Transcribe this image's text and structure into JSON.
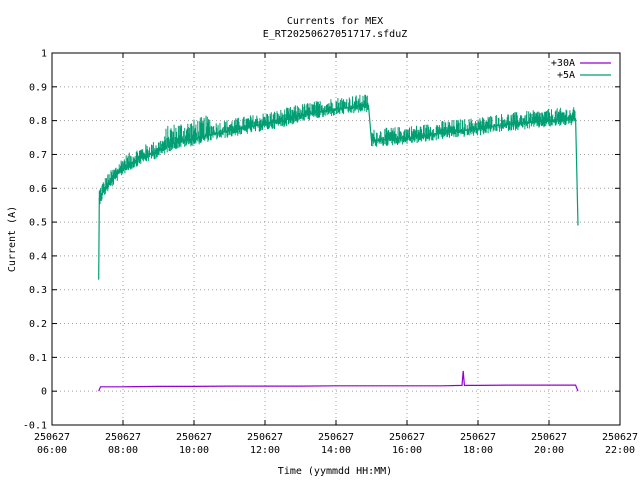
{
  "chart_data": {
    "type": "line",
    "title": "Currents for MEX",
    "subtitle": "E_RT20250627051717.sfduZ",
    "xlabel": "Time (yymmdd HH:MM)",
    "ylabel": "Current (A)",
    "xlim": [
      "2025-06-27T06:00",
      "2025-06-27T22:00"
    ],
    "ylim": [
      -0.1,
      1.0
    ],
    "grid": true,
    "legend_position": "top-right",
    "x_ticks": [
      {
        "date": "250627",
        "time": "06:00",
        "hour": 6
      },
      {
        "date": "250627",
        "time": "08:00",
        "hour": 8
      },
      {
        "date": "250627",
        "time": "10:00",
        "hour": 10
      },
      {
        "date": "250627",
        "time": "12:00",
        "hour": 12
      },
      {
        "date": "250627",
        "time": "14:00",
        "hour": 14
      },
      {
        "date": "250627",
        "time": "16:00",
        "hour": 16
      },
      {
        "date": "250627",
        "time": "18:00",
        "hour": 18
      },
      {
        "date": "250627",
        "time": "20:00",
        "hour": 20
      },
      {
        "date": "250627",
        "time": "22:00",
        "hour": 22
      }
    ],
    "y_ticks": [
      "-0.1",
      "0",
      "0.1",
      "0.2",
      "0.3",
      "0.4",
      "0.5",
      "0.6",
      "0.7",
      "0.8",
      "0.9",
      "1"
    ],
    "series": [
      {
        "name": "+30A",
        "color": "#9400d3",
        "points": [
          [
            "07:19",
            0.0
          ],
          [
            "07:22",
            0.013
          ],
          [
            "08:00",
            0.013
          ],
          [
            "09:00",
            0.014
          ],
          [
            "10:00",
            0.014
          ],
          [
            "11:00",
            0.015
          ],
          [
            "12:00",
            0.015
          ],
          [
            "13:00",
            0.015
          ],
          [
            "14:00",
            0.016
          ],
          [
            "15:00",
            0.016
          ],
          [
            "16:00",
            0.016
          ],
          [
            "17:00",
            0.016
          ],
          [
            "17:33",
            0.017
          ],
          [
            "17:35",
            0.06
          ],
          [
            "17:37",
            0.017
          ],
          [
            "18:00",
            0.017
          ],
          [
            "19:00",
            0.018
          ],
          [
            "20:00",
            0.018
          ],
          [
            "20:45",
            0.018
          ],
          [
            "20:49",
            0.0
          ]
        ]
      },
      {
        "name": "+5A",
        "color": "#009e73",
        "points": [
          [
            "07:19",
            0.33
          ],
          [
            "07:20",
            0.57
          ],
          [
            "07:30",
            0.6
          ],
          [
            "07:45",
            0.63
          ],
          [
            "08:00",
            0.66
          ],
          [
            "08:30",
            0.69
          ],
          [
            "09:00",
            0.71
          ],
          [
            "09:20",
            0.73
          ],
          [
            "09:40",
            0.74
          ],
          [
            "10:00",
            0.745
          ],
          [
            "10:30",
            0.76
          ],
          [
            "11:00",
            0.77
          ],
          [
            "11:30",
            0.78
          ],
          [
            "12:00",
            0.79
          ],
          [
            "12:30",
            0.8
          ],
          [
            "13:00",
            0.815
          ],
          [
            "13:30",
            0.825
          ],
          [
            "14:00",
            0.835
          ],
          [
            "14:30",
            0.84
          ],
          [
            "14:55",
            0.845
          ],
          [
            "15:00",
            0.74
          ],
          [
            "15:30",
            0.745
          ],
          [
            "16:00",
            0.75
          ],
          [
            "16:30",
            0.755
          ],
          [
            "17:00",
            0.765
          ],
          [
            "17:30",
            0.77
          ],
          [
            "18:00",
            0.775
          ],
          [
            "18:30",
            0.785
          ],
          [
            "19:00",
            0.79
          ],
          [
            "19:30",
            0.795
          ],
          [
            "20:00",
            0.8
          ],
          [
            "20:30",
            0.805
          ],
          [
            "20:45",
            0.805
          ],
          [
            "20:49",
            0.49
          ]
        ]
      }
    ]
  }
}
